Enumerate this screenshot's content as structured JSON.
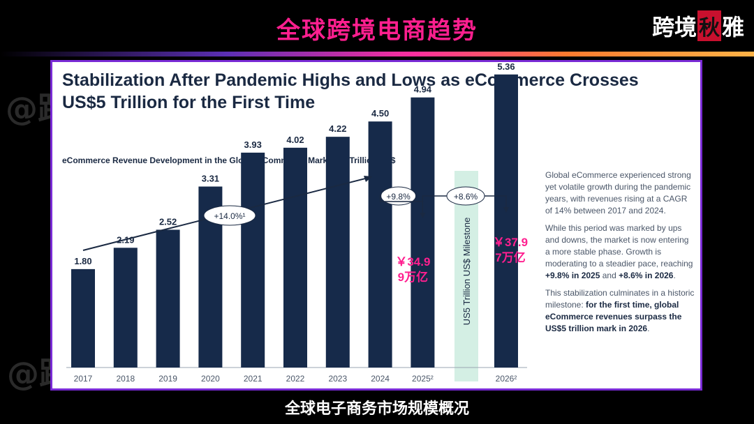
{
  "header": {
    "title": "全球跨境电商趋势",
    "brand": [
      "跨境",
      "秋",
      "雅"
    ]
  },
  "footer": {
    "caption": "全球电子商务市场规模概况"
  },
  "card": {
    "headline_line1": "Stabilization After Pandemic Highs and Lows as eCommerce Crosses",
    "headline_line2": "US$5 Trillion for the First Time",
    "chart_subtitle": "eCommerce Revenue Development in the Global eCommerce Market, in Trillion US$"
  },
  "chart_data": {
    "type": "bar",
    "title": "eCommerce Revenue Development in the Global eCommerce Market, in Trillion US$",
    "categories": [
      "2017",
      "2018",
      "2019",
      "2020",
      "2021",
      "2022",
      "2023",
      "2024",
      "2025²",
      "2026²"
    ],
    "values": [
      1.8,
      2.19,
      2.52,
      3.31,
      3.93,
      4.02,
      4.22,
      4.5,
      4.94,
      5.36
    ],
    "value_labels": [
      "1.80",
      "2.19",
      "2.52",
      "3.31",
      "3.93",
      "4.02",
      "4.22",
      "4.50",
      "4.94",
      "5.36"
    ],
    "bar_color": "#162a4a",
    "cagr_label": "+14.0%¹",
    "growth_2025_label": "+9.8%",
    "growth_2026_label": "+8.6%",
    "milestone_label": "US5 Trillion US$ Milestone",
    "milestone_color": "#d4efe4",
    "cny_2025": [
      "￥34.9",
      "9万亿"
    ],
    "cny_2026": [
      "￥37.9",
      "7万亿"
    ],
    "cny_color": "#ff1f8f",
    "ylim": [
      0,
      6
    ]
  },
  "side": {
    "p1": "Global eCommerce experienced strong yet volatile growth during the pandemic years, with revenues rising at a CAGR of 14% between 2017 and 2024.",
    "p2_a": "While this period was marked by ups and downs, the market is now entering a more stable phase. Growth is moderating to a steadier pace, reaching ",
    "p2_b1": "+9.8% in 2025",
    "p2_c": " and ",
    "p2_b2": "+8.6% in 2026",
    "p2_d": ".",
    "p3_a": "This stabilization culminates in a historic milestone: ",
    "p3_b": "for the first time, global eCommerce revenues surpass the US$5 trillion mark in 2026",
    "p3_c": "."
  },
  "watermark": "@跨境秋雅"
}
